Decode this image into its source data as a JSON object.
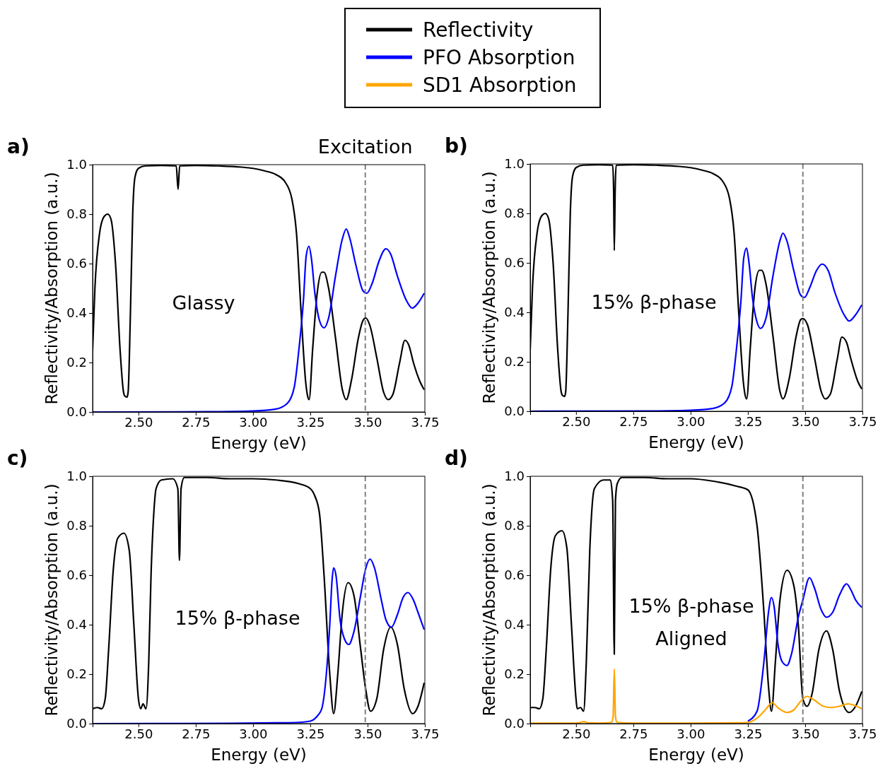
{
  "chart_data": [
    {
      "type": "line",
      "title": "a)",
      "xlabel": "Energy (eV)",
      "ylabel": "Reflectivity/Absorption (a.u.)",
      "xlim": [
        2.3,
        3.75
      ],
      "ylim": [
        0,
        1
      ],
      "xticks": [
        {
          "value": 2.5,
          "label": "2.50"
        },
        {
          "value": 2.75,
          "label": "2.75"
        },
        {
          "value": 3,
          "label": "3.00"
        },
        {
          "value": 3.25,
          "label": "3.25"
        },
        {
          "value": 3.5,
          "label": "3.50"
        },
        {
          "value": 3.75,
          "label": "3.75"
        }
      ],
      "yticks": [
        {
          "value": 0,
          "label": "0.0"
        },
        {
          "value": 0.2,
          "label": "0.2"
        },
        {
          "value": 0.4,
          "label": "0.4"
        },
        {
          "value": 0.6,
          "label": "0.6"
        },
        {
          "value": 0.8,
          "label": "0.8"
        },
        {
          "value": 1,
          "label": "1.0"
        }
      ],
      "grid": false,
      "legend": false,
      "annotations": [
        "Glassy"
      ],
      "ref_lines": [
        {
          "axis": "x",
          "value": 3.49,
          "label": "Excitation",
          "color": "#808080",
          "line_style": "dashed"
        }
      ],
      "series": [
        {
          "color": "#000000",
          "x": [
            2.3,
            2.31,
            2.33,
            2.35,
            2.366,
            2.38,
            2.4,
            2.42,
            2.435,
            2.44,
            2.45,
            2.455,
            2.465,
            2.475,
            2.485,
            2.5,
            2.53,
            2.6,
            2.665,
            2.673,
            2.68,
            2.75,
            2.85,
            2.95,
            3.0,
            3.05,
            3.1,
            3.14,
            3.17,
            3.19,
            3.21,
            3.23,
            3.237,
            3.245,
            3.26,
            3.28,
            3.3,
            3.31,
            3.33,
            3.36,
            3.39,
            3.407,
            3.43,
            3.46,
            3.48,
            3.492,
            3.51,
            3.54,
            3.57,
            3.59,
            3.61,
            3.64,
            3.663,
            3.68,
            3.7,
            3.73,
            3.747
          ],
          "values": [
            0.25,
            0.5,
            0.72,
            0.79,
            0.8,
            0.78,
            0.6,
            0.25,
            0.08,
            0.065,
            0.06,
            0.08,
            0.4,
            0.8,
            0.95,
            0.985,
            0.995,
            0.997,
            0.995,
            0.9,
            0.995,
            0.997,
            0.995,
            0.99,
            0.985,
            0.975,
            0.96,
            0.93,
            0.86,
            0.72,
            0.4,
            0.12,
            0.07,
            0.05,
            0.25,
            0.48,
            0.565,
            0.565,
            0.5,
            0.3,
            0.09,
            0.05,
            0.13,
            0.3,
            0.37,
            0.38,
            0.35,
            0.22,
            0.08,
            0.05,
            0.07,
            0.2,
            0.29,
            0.27,
            0.2,
            0.12,
            0.09
          ]
        },
        {
          "color": "#0000ff",
          "x": [
            2.3,
            2.8,
            3.0,
            3.1,
            3.15,
            3.18,
            3.2,
            3.22,
            3.232,
            3.244,
            3.255,
            3.27,
            3.29,
            3.31,
            3.33,
            3.36,
            3.39,
            3.407,
            3.42,
            3.45,
            3.48,
            3.497,
            3.52,
            3.55,
            3.58,
            3.6,
            3.63,
            3.67,
            3.695,
            3.72,
            3.747
          ],
          "values": [
            0,
            0.001,
            0.004,
            0.012,
            0.035,
            0.1,
            0.25,
            0.45,
            0.63,
            0.67,
            0.62,
            0.48,
            0.37,
            0.34,
            0.38,
            0.55,
            0.7,
            0.74,
            0.71,
            0.59,
            0.49,
            0.48,
            0.52,
            0.61,
            0.66,
            0.64,
            0.55,
            0.45,
            0.42,
            0.44,
            0.48
          ]
        }
      ]
    },
    {
      "type": "line",
      "title": "b)",
      "xlabel": "Energy (eV)",
      "ylabel": "Reflectivity/Absorption (a.u.)",
      "xlim": [
        2.3,
        3.75
      ],
      "ylim": [
        0,
        1
      ],
      "xticks": [
        {
          "value": 2.5,
          "label": "2.50"
        },
        {
          "value": 2.75,
          "label": "2.75"
        },
        {
          "value": 3,
          "label": "3.00"
        },
        {
          "value": 3.25,
          "label": "3.25"
        },
        {
          "value": 3.5,
          "label": "3.50"
        },
        {
          "value": 3.75,
          "label": "3.75"
        }
      ],
      "yticks": [
        {
          "value": 0,
          "label": "0.0"
        },
        {
          "value": 0.2,
          "label": "0.2"
        },
        {
          "value": 0.4,
          "label": "0.4"
        },
        {
          "value": 0.6,
          "label": "0.6"
        },
        {
          "value": 0.8,
          "label": "0.8"
        },
        {
          "value": 1,
          "label": "1.0"
        }
      ],
      "grid": false,
      "legend": false,
      "annotations": [
        "15% β-phase"
      ],
      "ref_lines": [
        {
          "axis": "x",
          "value": 3.49,
          "color": "#808080",
          "line_style": "dashed"
        }
      ],
      "series": [
        {
          "color": "#000000",
          "x": [
            2.3,
            2.31,
            2.33,
            2.35,
            2.366,
            2.38,
            2.4,
            2.42,
            2.435,
            2.44,
            2.45,
            2.455,
            2.465,
            2.475,
            2.485,
            2.5,
            2.53,
            2.6,
            2.66,
            2.664,
            2.667,
            2.671,
            2.675,
            2.75,
            2.85,
            2.95,
            3.0,
            3.05,
            3.1,
            3.14,
            3.17,
            3.19,
            3.21,
            3.23,
            3.237,
            3.245,
            3.26,
            3.28,
            3.3,
            3.31,
            3.33,
            3.36,
            3.39,
            3.403,
            3.43,
            3.46,
            3.48,
            3.489,
            3.51,
            3.54,
            3.57,
            3.588,
            3.61,
            3.64,
            3.66,
            3.68,
            3.7,
            3.73,
            3.747
          ],
          "values": [
            0.25,
            0.5,
            0.72,
            0.79,
            0.8,
            0.78,
            0.6,
            0.25,
            0.08,
            0.065,
            0.06,
            0.08,
            0.4,
            0.8,
            0.95,
            0.985,
            0.995,
            0.997,
            0.995,
            0.9,
            0.65,
            0.9,
            0.995,
            0.997,
            0.995,
            0.99,
            0.985,
            0.975,
            0.96,
            0.93,
            0.86,
            0.72,
            0.4,
            0.12,
            0.07,
            0.05,
            0.25,
            0.49,
            0.57,
            0.57,
            0.51,
            0.3,
            0.08,
            0.05,
            0.13,
            0.3,
            0.37,
            0.375,
            0.35,
            0.22,
            0.08,
            0.05,
            0.07,
            0.21,
            0.3,
            0.28,
            0.21,
            0.12,
            0.09
          ]
        },
        {
          "color": "#0000ff",
          "x": [
            2.3,
            2.8,
            3.0,
            3.1,
            3.15,
            3.18,
            3.2,
            3.22,
            3.232,
            3.244,
            3.255,
            3.27,
            3.29,
            3.305,
            3.33,
            3.36,
            3.39,
            3.403,
            3.42,
            3.45,
            3.48,
            3.497,
            3.52,
            3.55,
            3.574,
            3.6,
            3.63,
            3.67,
            3.692,
            3.72,
            3.747
          ],
          "values": [
            0,
            0.001,
            0.004,
            0.012,
            0.035,
            0.1,
            0.25,
            0.45,
            0.62,
            0.66,
            0.6,
            0.46,
            0.36,
            0.335,
            0.38,
            0.55,
            0.69,
            0.72,
            0.69,
            0.57,
            0.47,
            0.46,
            0.5,
            0.57,
            0.595,
            0.57,
            0.48,
            0.39,
            0.365,
            0.39,
            0.43
          ]
        }
      ]
    },
    {
      "type": "line",
      "title": "c)",
      "xlabel": "Energy (eV)",
      "ylabel": "Reflectivity/Absorption (a.u.)",
      "xlim": [
        2.3,
        3.75
      ],
      "ylim": [
        0,
        1
      ],
      "xticks": [
        {
          "value": 2.5,
          "label": "2.50"
        },
        {
          "value": 2.75,
          "label": "2.75"
        },
        {
          "value": 3,
          "label": "3.00"
        },
        {
          "value": 3.25,
          "label": "3.25"
        },
        {
          "value": 3.5,
          "label": "3.50"
        },
        {
          "value": 3.75,
          "label": "3.75"
        }
      ],
      "yticks": [
        {
          "value": 0,
          "label": "0.0"
        },
        {
          "value": 0.2,
          "label": "0.2"
        },
        {
          "value": 0.4,
          "label": "0.4"
        },
        {
          "value": 0.6,
          "label": "0.6"
        },
        {
          "value": 0.8,
          "label": "0.8"
        },
        {
          "value": 1,
          "label": "1.0"
        }
      ],
      "grid": false,
      "legend": false,
      "annotations": [
        "15% β-phase"
      ],
      "ref_lines": [
        {
          "axis": "x",
          "value": 3.49,
          "color": "#808080",
          "line_style": "dashed"
        }
      ],
      "series": [
        {
          "color": "#000000",
          "x": [
            2.3,
            2.32,
            2.34,
            2.355,
            2.37,
            2.39,
            2.41,
            2.437,
            2.46,
            2.48,
            2.5,
            2.51,
            2.52,
            2.533,
            2.545,
            2.555,
            2.567,
            2.577,
            2.6,
            2.65,
            2.672,
            2.679,
            2.686,
            2.7,
            2.8,
            2.9,
            3.0,
            3.1,
            3.2,
            3.25,
            3.27,
            3.29,
            3.31,
            3.335,
            3.352,
            3.37,
            3.39,
            3.415,
            3.44,
            3.47,
            3.49,
            3.513,
            3.54,
            3.57,
            3.601,
            3.63,
            3.66,
            3.697,
            3.72,
            3.747
          ],
          "values": [
            0.06,
            0.065,
            0.06,
            0.1,
            0.3,
            0.62,
            0.75,
            0.77,
            0.7,
            0.4,
            0.1,
            0.06,
            0.08,
            0.06,
            0.25,
            0.6,
            0.85,
            0.95,
            0.985,
            0.99,
            0.95,
            0.66,
            0.95,
            0.995,
            0.995,
            0.99,
            0.99,
            0.985,
            0.97,
            0.95,
            0.92,
            0.85,
            0.6,
            0.2,
            0.04,
            0.2,
            0.45,
            0.57,
            0.52,
            0.3,
            0.15,
            0.05,
            0.1,
            0.3,
            0.39,
            0.32,
            0.14,
            0.04,
            0.07,
            0.165
          ]
        },
        {
          "color": "#0000ff",
          "x": [
            2.3,
            2.9,
            3.1,
            3.2,
            3.25,
            3.28,
            3.3,
            3.32,
            3.335,
            3.345,
            3.352,
            3.362,
            3.38,
            3.4,
            3.418,
            3.44,
            3.47,
            3.49,
            3.511,
            3.53,
            3.56,
            3.58,
            3.604,
            3.63,
            3.655,
            3.676,
            3.7,
            3.72,
            3.747
          ],
          "values": [
            0,
            0.001,
            0.003,
            0.005,
            0.01,
            0.03,
            0.06,
            0.2,
            0.4,
            0.58,
            0.63,
            0.6,
            0.42,
            0.34,
            0.32,
            0.37,
            0.52,
            0.62,
            0.665,
            0.63,
            0.5,
            0.42,
            0.39,
            0.44,
            0.51,
            0.53,
            0.5,
            0.45,
            0.38
          ]
        }
      ]
    },
    {
      "type": "line",
      "title": "d)",
      "xlabel": "Energy (eV)",
      "ylabel": "Reflectivity/Absorption (a.u.)",
      "xlim": [
        2.3,
        3.75
      ],
      "ylim": [
        0,
        1
      ],
      "xticks": [
        {
          "value": 2.5,
          "label": "2.50"
        },
        {
          "value": 2.75,
          "label": "2.75"
        },
        {
          "value": 3,
          "label": "3.00"
        },
        {
          "value": 3.25,
          "label": "3.25"
        },
        {
          "value": 3.5,
          "label": "3.50"
        },
        {
          "value": 3.75,
          "label": "3.75"
        }
      ],
      "yticks": [
        {
          "value": 0,
          "label": "0.0"
        },
        {
          "value": 0.2,
          "label": "0.2"
        },
        {
          "value": 0.4,
          "label": "0.4"
        },
        {
          "value": 0.6,
          "label": "0.6"
        },
        {
          "value": 0.8,
          "label": "0.8"
        },
        {
          "value": 1,
          "label": "1.0"
        }
      ],
      "grid": false,
      "legend": "top",
      "annotations": [
        "15% β-phase",
        "Aligned"
      ],
      "ref_lines": [
        {
          "axis": "x",
          "value": 3.49,
          "color": "#808080",
          "line_style": "dashed"
        }
      ],
      "series": [
        {
          "name": "Reflectivity",
          "color": "#000000",
          "x": [
            2.3,
            2.32,
            2.34,
            2.355,
            2.37,
            2.39,
            2.41,
            2.439,
            2.46,
            2.48,
            2.5,
            2.505,
            2.52,
            2.533,
            2.545,
            2.56,
            2.58,
            2.62,
            2.65,
            2.66,
            2.667,
            2.672,
            2.68,
            2.7,
            2.8,
            2.9,
            3.0,
            3.1,
            3.2,
            3.25,
            3.29,
            3.32,
            3.34,
            3.353,
            3.37,
            3.39,
            3.421,
            3.45,
            3.47,
            3.49,
            3.508,
            3.53,
            3.56,
            3.593,
            3.62,
            3.65,
            3.692,
            3.72,
            3.747
          ],
          "values": [
            0.065,
            0.065,
            0.06,
            0.1,
            0.3,
            0.63,
            0.76,
            0.78,
            0.71,
            0.4,
            0.1,
            0.06,
            0.065,
            0.05,
            0.25,
            0.7,
            0.95,
            0.985,
            0.985,
            0.9,
            0.28,
            0.9,
            0.97,
            0.995,
            0.995,
            0.99,
            0.99,
            0.98,
            0.96,
            0.945,
            0.8,
            0.45,
            0.15,
            0.05,
            0.25,
            0.5,
            0.62,
            0.56,
            0.4,
            0.1,
            0.07,
            0.12,
            0.3,
            0.375,
            0.3,
            0.13,
            0.045,
            0.07,
            0.13
          ]
        },
        {
          "name": "PFO Absorption",
          "color": "#0000ff",
          "x": [
            3.25,
            3.29,
            3.32,
            3.34,
            3.353,
            3.365,
            3.38,
            3.4,
            3.421,
            3.44,
            3.47,
            3.49,
            3.519,
            3.54,
            3.57,
            3.593,
            3.62,
            3.65,
            3.681,
            3.7,
            3.72,
            3.747
          ],
          "values": [
            0.01,
            0.05,
            0.25,
            0.45,
            0.51,
            0.47,
            0.33,
            0.25,
            0.235,
            0.28,
            0.43,
            0.5,
            0.59,
            0.55,
            0.46,
            0.43,
            0.45,
            0.52,
            0.565,
            0.54,
            0.5,
            0.47
          ]
        },
        {
          "name": "SD1 Absorption",
          "color": "#ffa500",
          "x": [
            2.3,
            2.4,
            2.5,
            2.52,
            2.535,
            2.55,
            2.6,
            2.655,
            2.662,
            2.667,
            2.672,
            2.679,
            2.75,
            3.0,
            3.2,
            3.25,
            3.3,
            3.33,
            3.356,
            3.38,
            3.421,
            3.45,
            3.48,
            3.508,
            3.54,
            3.58,
            3.61,
            3.65,
            3.687,
            3.72,
            3.747
          ],
          "values": [
            0.002,
            0.002,
            0.002,
            0.005,
            0.008,
            0.003,
            0.002,
            0.005,
            0.03,
            0.22,
            0.03,
            0.005,
            0.002,
            0.002,
            0.003,
            0.005,
            0.03,
            0.06,
            0.085,
            0.065,
            0.045,
            0.055,
            0.09,
            0.11,
            0.095,
            0.07,
            0.065,
            0.07,
            0.08,
            0.072,
            0.06
          ]
        }
      ]
    }
  ]
}
